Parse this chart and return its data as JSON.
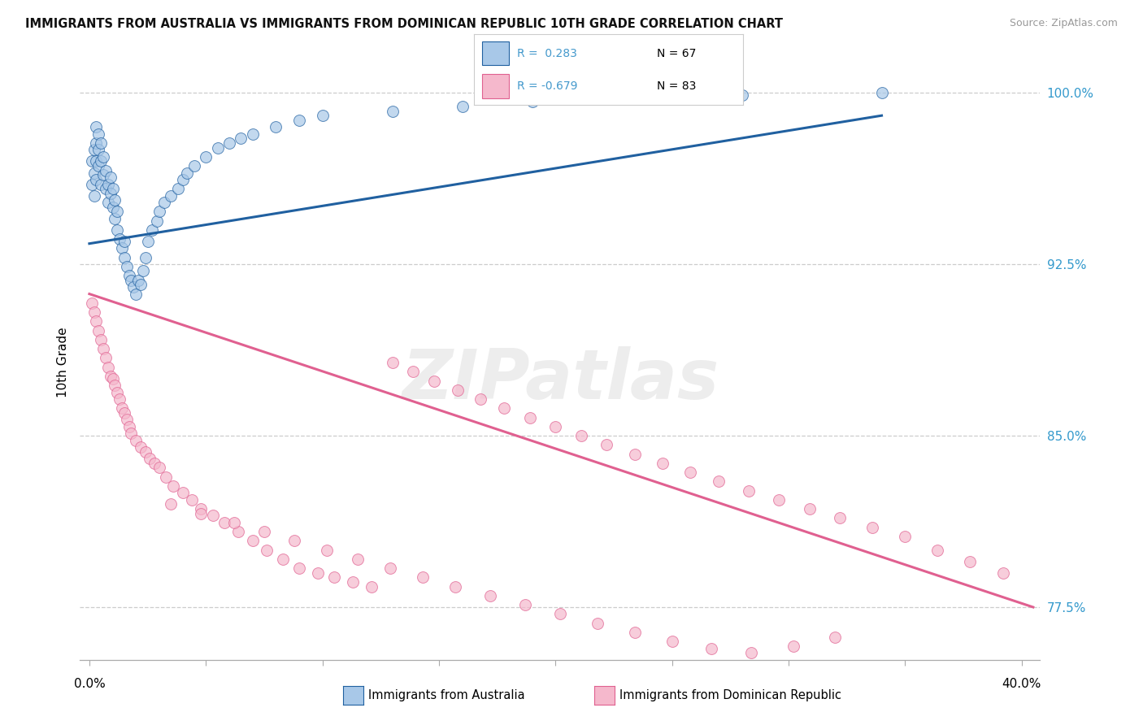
{
  "title": "IMMIGRANTS FROM AUSTRALIA VS IMMIGRANTS FROM DOMINICAN REPUBLIC 10TH GRADE CORRELATION CHART",
  "source": "Source: ZipAtlas.com",
  "ylabel": "10th Grade",
  "ylim": [
    0.752,
    1.012
  ],
  "xlim": [
    -0.004,
    0.408
  ],
  "R_australia": 0.283,
  "N_australia": 67,
  "R_dominican": -0.679,
  "N_dominican": 83,
  "color_australia": "#a8c8e8",
  "color_dominican": "#f5b8cc",
  "line_color_australia": "#2060a0",
  "line_color_dominican": "#e06090",
  "watermark": "ZIPatlas",
  "legend_R_color": "#4499cc",
  "y_ticks": [
    0.775,
    0.85,
    0.925,
    1.0
  ],
  "y_tick_labels": [
    "77.5%",
    "85.0%",
    "92.5%",
    "100.0%"
  ],
  "bottom_label_aus": "Immigrants from Australia",
  "bottom_label_dom": "Immigrants from Dominican Republic",
  "legend_aus_r": "R =  0.283",
  "legend_aus_n": "N = 67",
  "legend_dom_r": "R = -0.679",
  "legend_dom_n": "N = 83"
}
